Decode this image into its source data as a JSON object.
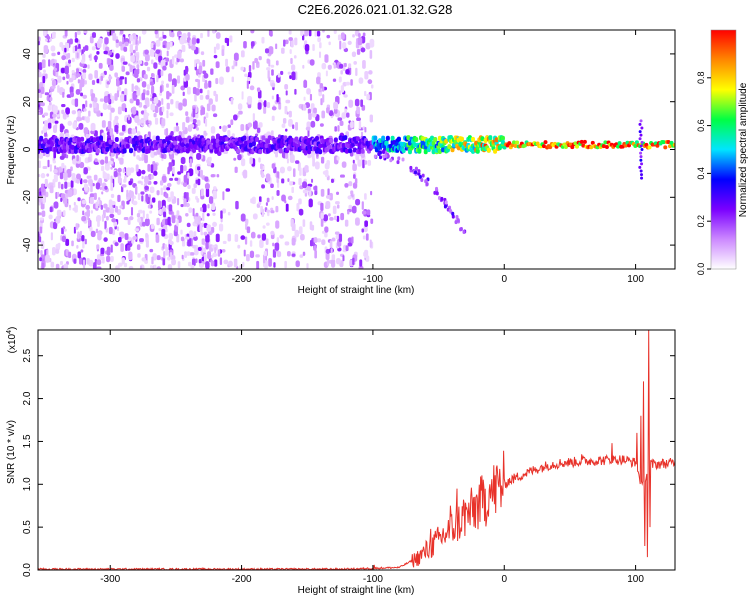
{
  "title": "C2E6.2026.021.01.32.G28",
  "chart_data": [
    {
      "type": "heatmap",
      "xlabel": "Height of straight line (km)",
      "ylabel": "Frequency (Hz)",
      "xlim": [
        -355,
        130
      ],
      "ylim": [
        -50,
        50
      ],
      "xticks": [
        -300,
        -200,
        -100,
        0,
        100
      ],
      "yticks": [
        -40,
        -20,
        0,
        20,
        40
      ],
      "colorbar": {
        "label": "Normalized spectral amplitude",
        "range": [
          0,
          1
        ],
        "ticks": [
          "0.0",
          "0.2",
          "0.4",
          "0.6",
          "0.8"
        ],
        "tick_values": [
          0,
          0.2,
          0.4,
          0.6,
          0.8
        ],
        "colors": [
          "#ffffff",
          "#cc88ff",
          "#7a00ff",
          "#0000ff",
          "#00e5ff",
          "#00ff44",
          "#ffff00",
          "#ff8800",
          "#ff0000"
        ]
      },
      "features": {
        "noise_region_x": [
          -355,
          -100
        ],
        "main_band_center_hz": 2,
        "main_band_halfwidth_hz": 4,
        "branch": {
          "x_start": -100,
          "x_end": -30,
          "y_start": -2,
          "y_end": -35
        }
      }
    },
    {
      "type": "line",
      "xlabel": "Height of straight line (km)",
      "ylabel": "SNR (10 * v/v)",
      "y_scale_label": "(x10",
      "y_scale_exp": "4",
      "y_scale_close": ")",
      "xlim": [
        -355,
        130
      ],
      "ylim": [
        0,
        2.8
      ],
      "xticks": [
        -300,
        -200,
        -100,
        0,
        100
      ],
      "yticks": [
        "0.0",
        "0.5",
        "1.0",
        "1.5",
        "2.0",
        "2.5"
      ],
      "ytick_values": [
        0,
        0.5,
        1.0,
        1.5,
        2.0,
        2.5
      ],
      "series": [
        {
          "color": "#e8322a",
          "trend": [
            [
              -355,
              0.01
            ],
            [
              -120,
              0.01
            ],
            [
              -80,
              0.03
            ],
            [
              -65,
              0.15
            ],
            [
              -55,
              0.28
            ],
            [
              -45,
              0.42
            ],
            [
              -35,
              0.55
            ],
            [
              -25,
              0.68
            ],
            [
              -15,
              0.82
            ],
            [
              -5,
              0.96
            ],
            [
              5,
              1.05
            ],
            [
              15,
              1.12
            ],
            [
              25,
              1.18
            ],
            [
              35,
              1.23
            ],
            [
              45,
              1.25
            ],
            [
              60,
              1.27
            ],
            [
              75,
              1.28
            ],
            [
              90,
              1.29
            ],
            [
              100,
              1.25
            ],
            [
              105,
              0.95
            ],
            [
              110,
              1.23
            ],
            [
              130,
              1.25
            ]
          ],
          "spikes": [
            [
              -99,
              0.06
            ],
            [
              -56,
              0.48
            ],
            [
              -41,
              0.75
            ],
            [
              -36,
              0.95
            ],
            [
              -31,
              0.82
            ],
            [
              -21,
              0.88
            ],
            [
              -11,
              1.0
            ],
            [
              59,
              1.35
            ],
            [
              82,
              1.48
            ],
            [
              101,
              1.6
            ],
            [
              104,
              1.8
            ],
            [
              106,
              2.2
            ],
            [
              107,
              0.28
            ],
            [
              109,
              0.15
            ],
            [
              110,
              2.8
            ],
            [
              111,
              0.5
            ]
          ]
        }
      ]
    }
  ]
}
